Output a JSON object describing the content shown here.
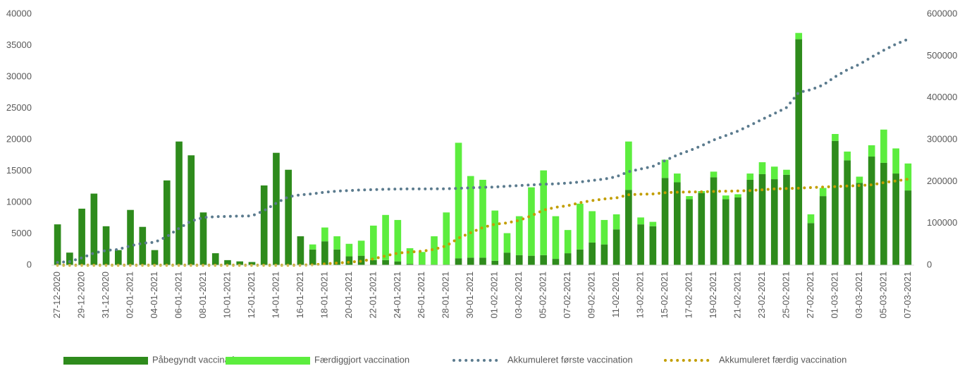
{
  "chart_data": {
    "type": "bar",
    "stacked": true,
    "legend": "bottom",
    "categories": [
      "27-12-2020",
      null,
      "29-12-2020",
      null,
      "31-12-2020",
      null,
      "02-01-2021",
      null,
      "04-01-2021",
      null,
      "06-01-2021",
      null,
      "08-01-2021",
      null,
      "10-01-2021",
      null,
      "12-01-2021",
      null,
      "14-01-2021",
      null,
      "16-01-2021",
      null,
      "18-01-2021",
      null,
      "20-01-2021",
      null,
      "22-01-2021",
      null,
      "24-01-2021",
      null,
      "26-01-2021",
      null,
      "28-01-2021",
      null,
      "30-01-2021",
      null,
      "01-02-2021",
      null,
      "03-02-2021",
      null,
      "05-02-2021",
      null,
      "07-02-2021",
      null,
      "09-02-2021",
      null,
      "11-02-2021",
      null,
      "13-02-2021",
      null,
      "15-02-2021",
      null,
      "17-02-2021",
      null,
      "19-02-2021",
      null,
      "21-02-2021",
      null,
      "23-02-2021",
      null,
      "25-02-2021",
      null,
      "27-02-2021",
      null,
      "01-03-2021",
      null,
      "03-03-2021",
      null,
      "05-03-2021",
      null,
      "07-03-2021"
    ],
    "series": [
      {
        "name": "Påbegyndt vaccination",
        "type": "bar",
        "color": "#2e8b1c",
        "values": [
          6500,
          2000,
          9000,
          11400,
          6200,
          2400,
          8800,
          6100,
          2400,
          13500,
          19700,
          17500,
          8400,
          1900,
          800,
          600,
          500,
          12700,
          17900,
          15200,
          4600,
          2500,
          3800,
          2500,
          1400,
          1500,
          800,
          800,
          600,
          200,
          100,
          100,
          100,
          1100,
          1200,
          1200,
          700,
          2000,
          1600,
          1500,
          1600,
          1000,
          1900,
          2500,
          3600,
          3300,
          5700,
          12000,
          6500,
          6200,
          13900,
          13200,
          10500,
          11500,
          14000,
          10500,
          10800,
          13600,
          14500,
          13700,
          14400,
          36000,
          6700,
          11000,
          19800,
          16700,
          13100,
          17300,
          16300,
          14600,
          11900
        ]
      },
      {
        "name": "Færdiggjort vaccination",
        "type": "bar",
        "color": "#5ced3e",
        "values": [
          0,
          0,
          0,
          0,
          0,
          0,
          0,
          0,
          0,
          0,
          0,
          0,
          0,
          0,
          0,
          0,
          0,
          0,
          0,
          0,
          0,
          800,
          2200,
          2100,
          2000,
          2400,
          5500,
          7200,
          6600,
          2500,
          2000,
          4500,
          8300,
          18400,
          13000,
          12400,
          8000,
          3100,
          6200,
          10900,
          13500,
          6800,
          3700,
          7300,
          5000,
          3900,
          2400,
          7700,
          1100,
          700,
          2900,
          1400,
          500,
          300,
          900,
          600,
          500,
          1000,
          1900,
          2000,
          800,
          1000,
          1400,
          1300,
          1100,
          1400,
          1000,
          1800,
          5300,
          4000,
          4300
        ]
      },
      {
        "name": "Akkumuleret første vaccination",
        "type": "line",
        "axis": "y2",
        "color": "#5b7b8e",
        "values": [
          6500,
          8500,
          17500,
          28900,
          35100,
          37500,
          46300,
          52400,
          54800,
          68300,
          88000,
          105500,
          113900,
          115800,
          116600,
          117200,
          117700,
          130400,
          148300,
          163500,
          168100,
          170600,
          174400,
          176900,
          178300,
          179800,
          180600,
          181400,
          182000,
          182200,
          182300,
          182400,
          182500,
          183600,
          184800,
          186000,
          186700,
          188700,
          190300,
          191800,
          193400,
          194400,
          196300,
          198800,
          202400,
          205700,
          211400,
          223400,
          229900,
          236100,
          250000,
          263200,
          273700,
          285200,
          299200,
          309700,
          320500,
          334100,
          348600,
          362300,
          376700,
          412700,
          419400,
          430400,
          450200,
          466900,
          480000,
          497300,
          513600,
          528200,
          540100
        ]
      },
      {
        "name": "Akkumuleret færdig vaccination",
        "type": "line",
        "axis": "y2",
        "color": "#c29e00",
        "values": [
          0,
          0,
          0,
          0,
          0,
          0,
          0,
          0,
          0,
          0,
          0,
          0,
          0,
          0,
          0,
          0,
          0,
          0,
          0,
          0,
          0,
          800,
          3000,
          5100,
          7100,
          9500,
          15000,
          22200,
          28800,
          31300,
          33300,
          37800,
          46100,
          64500,
          77500,
          89900,
          97900,
          101000,
          107200,
          118100,
          131600,
          138400,
          142100,
          149400,
          154400,
          158300,
          160700,
          168400,
          169500,
          170200,
          173100,
          174500,
          175000,
          175300,
          176200,
          176800,
          177300,
          178300,
          180200,
          182200,
          183000,
          184000,
          185400,
          186700,
          187800,
          189200,
          190200,
          192000,
          197300,
          201300,
          205600
        ]
      }
    ],
    "ylim": [
      0,
      40000
    ],
    "yticks": [
      0,
      5000,
      10000,
      15000,
      20000,
      25000,
      30000,
      35000,
      40000
    ],
    "y2lim": [
      0,
      600000
    ],
    "y2ticks": [
      0,
      100000,
      200000,
      300000,
      400000,
      500000,
      600000
    ]
  }
}
